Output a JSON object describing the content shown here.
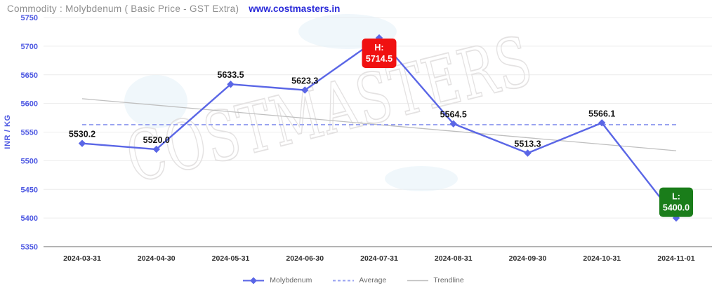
{
  "header": {
    "title": "Commodity : Molybdenum ( Basic Price - GST Extra)",
    "link": "www.costmasters.in"
  },
  "watermark": "COSTMASTERS",
  "colors": {
    "line": "#5a66e6",
    "average": "#97a1f0",
    "trendline": "#bfbfbf",
    "axis_text": "#4c57e2",
    "grid": "#ececec",
    "axis_line": "#9b9b9b",
    "high_badge": "#f01111",
    "low_badge": "#1a7d1a",
    "link": "#2a2ad9",
    "title": "#8e8e8e"
  },
  "chart_data": {
    "type": "line",
    "title": "Commodity : Molybdenum ( Basic Price - GST Extra)",
    "ylabel": "INR / KG",
    "x": [
      "2024-03-31",
      "2024-04-30",
      "2024-05-31",
      "2024-06-30",
      "2024-07-31",
      "2024-08-31",
      "2024-09-30",
      "2024-10-31",
      "2024-11-01"
    ],
    "series": [
      {
        "name": "Molybdenum",
        "values": [
          5530.2,
          5520.0,
          5633.5,
          5623.3,
          5714.5,
          5564.5,
          5513.3,
          5566.1,
          5400.0
        ]
      }
    ],
    "average": 5562.9,
    "trendline": {
      "start": 5608.3,
      "end": 5517.4
    },
    "high": {
      "prefix": "H:",
      "value": 5714.5,
      "index": 4
    },
    "low": {
      "prefix": "L:",
      "value": 5400.0,
      "index": 8
    },
    "yticks": [
      5350,
      5400,
      5450,
      5500,
      5550,
      5600,
      5650,
      5700,
      5750
    ],
    "ylim": [
      5350,
      5750
    ],
    "grid": true,
    "legend": {
      "position": "bottom",
      "items": [
        {
          "label": "Molybdenum",
          "type": "line-diamond"
        },
        {
          "label": "Average",
          "type": "dashed"
        },
        {
          "label": "Trendline",
          "type": "solid"
        }
      ]
    }
  }
}
